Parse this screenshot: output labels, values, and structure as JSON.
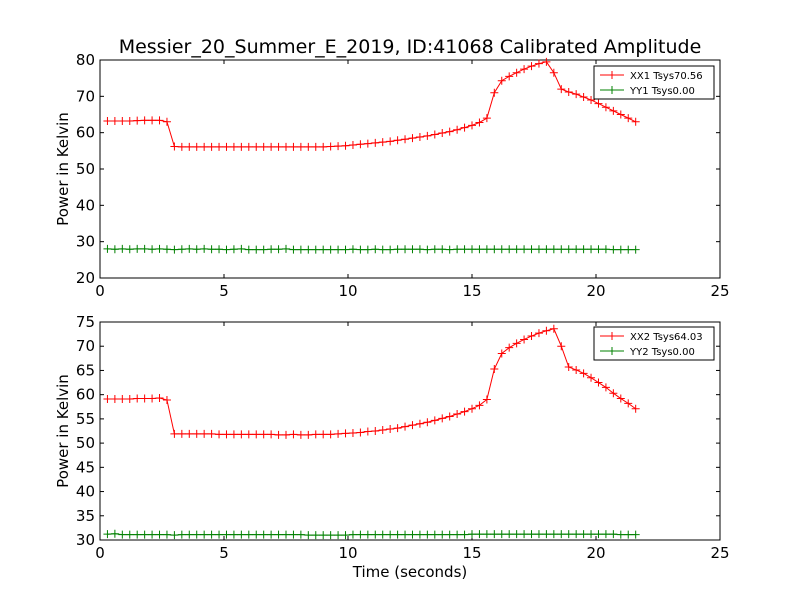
{
  "figure": {
    "title": "Messier_20_Summer_E_2019, ID:41068 Calibrated Amplitude",
    "xlabel": "Time (seconds)"
  },
  "chart_data": [
    {
      "type": "line",
      "ylabel": "Power in Kelvin",
      "xlim": [
        0,
        25
      ],
      "ylim": [
        20,
        80
      ],
      "xticks": [
        0,
        5,
        10,
        15,
        20,
        25
      ],
      "yticks": [
        20,
        30,
        40,
        50,
        60,
        70,
        80
      ],
      "legend_position": "top-right",
      "grid": false,
      "series": [
        {
          "name": "XX1 Tsys70.56",
          "color": "#ff0000",
          "marker": "+",
          "x": [
            0.3,
            0.6,
            0.9,
            1.2,
            1.5,
            1.8,
            2.1,
            2.4,
            2.7,
            3.0,
            3.3,
            3.6,
            3.9,
            4.2,
            4.5,
            4.8,
            5.1,
            5.4,
            5.7,
            6.0,
            6.3,
            6.6,
            6.9,
            7.2,
            7.5,
            7.8,
            8.1,
            8.4,
            8.7,
            9.0,
            9.3,
            9.6,
            9.9,
            10.2,
            10.5,
            10.8,
            11.1,
            11.4,
            11.7,
            12.0,
            12.3,
            12.6,
            12.9,
            13.2,
            13.5,
            13.8,
            14.1,
            14.4,
            14.7,
            15.0,
            15.3,
            15.6,
            15.9,
            16.2,
            16.5,
            16.8,
            17.1,
            17.4,
            17.7,
            18.0,
            18.3,
            18.6,
            18.9,
            19.2,
            19.5,
            19.8,
            20.1,
            20.4,
            20.7,
            21.0,
            21.3,
            21.6
          ],
          "y": [
            63.2,
            63.2,
            63.2,
            63.2,
            63.3,
            63.4,
            63.4,
            63.4,
            63.0,
            56.2,
            56.1,
            56.1,
            56.1,
            56.1,
            56.1,
            56.1,
            56.1,
            56.1,
            56.1,
            56.1,
            56.1,
            56.1,
            56.1,
            56.1,
            56.1,
            56.1,
            56.1,
            56.1,
            56.1,
            56.1,
            56.2,
            56.3,
            56.4,
            56.6,
            56.8,
            57.0,
            57.2,
            57.4,
            57.6,
            57.9,
            58.2,
            58.5,
            58.8,
            59.1,
            59.5,
            59.9,
            60.3,
            60.8,
            61.4,
            62.0,
            62.8,
            64.0,
            71.0,
            74.3,
            75.5,
            76.5,
            77.5,
            78.3,
            79.0,
            79.5,
            76.5,
            72.0,
            71.2,
            70.6,
            69.8,
            69.0,
            68.0,
            67.0,
            66.0,
            65.0,
            64.0,
            63.0
          ]
        },
        {
          "name": "YY1 Tsys0.00",
          "color": "#008000",
          "marker": "+",
          "x": [
            0.3,
            0.6,
            0.9,
            1.2,
            1.5,
            1.8,
            2.1,
            2.4,
            2.7,
            3.0,
            3.3,
            3.6,
            3.9,
            4.2,
            4.5,
            4.8,
            5.1,
            5.4,
            5.7,
            6.0,
            6.3,
            6.6,
            6.9,
            7.2,
            7.5,
            7.8,
            8.1,
            8.4,
            8.7,
            9.0,
            9.3,
            9.6,
            9.9,
            10.2,
            10.5,
            10.8,
            11.1,
            11.4,
            11.7,
            12.0,
            12.3,
            12.6,
            12.9,
            13.2,
            13.5,
            13.8,
            14.1,
            14.4,
            14.7,
            15.0,
            15.3,
            15.6,
            15.9,
            16.2,
            16.5,
            16.8,
            17.1,
            17.4,
            17.7,
            18.0,
            18.3,
            18.6,
            18.9,
            19.2,
            19.5,
            19.8,
            20.1,
            20.4,
            20.7,
            21.0,
            21.3,
            21.6
          ],
          "y": [
            28.0,
            27.9,
            28.0,
            27.9,
            28.0,
            28.0,
            27.9,
            28.0,
            27.9,
            27.8,
            27.9,
            28.0,
            27.9,
            28.0,
            27.9,
            27.9,
            27.8,
            27.9,
            28.0,
            27.8,
            27.8,
            27.8,
            27.9,
            27.9,
            28.0,
            27.8,
            27.8,
            27.8,
            27.8,
            27.8,
            27.8,
            27.8,
            27.8,
            27.9,
            27.8,
            27.8,
            27.9,
            27.8,
            27.8,
            27.9,
            27.9,
            27.9,
            27.9,
            27.8,
            27.9,
            27.9,
            27.8,
            27.9,
            27.9,
            27.9,
            27.9,
            27.9,
            27.9,
            27.9,
            27.9,
            27.9,
            27.9,
            27.9,
            27.9,
            27.9,
            27.9,
            27.9,
            27.9,
            27.9,
            27.9,
            27.9,
            27.9,
            27.9,
            27.8,
            27.8,
            27.8,
            27.8
          ]
        }
      ]
    },
    {
      "type": "line",
      "ylabel": "Power in Kelvin",
      "xlim": [
        0,
        25
      ],
      "ylim": [
        30,
        75
      ],
      "xticks": [
        0,
        5,
        10,
        15,
        20,
        25
      ],
      "yticks": [
        30,
        35,
        40,
        45,
        50,
        55,
        60,
        65,
        70,
        75
      ],
      "legend_position": "top-right",
      "grid": false,
      "series": [
        {
          "name": "XX2 Tsys64.03",
          "color": "#ff0000",
          "marker": "+",
          "x": [
            0.3,
            0.6,
            0.9,
            1.2,
            1.5,
            1.8,
            2.1,
            2.4,
            2.7,
            3.0,
            3.3,
            3.6,
            3.9,
            4.2,
            4.5,
            4.8,
            5.1,
            5.4,
            5.7,
            6.0,
            6.3,
            6.6,
            6.9,
            7.2,
            7.5,
            7.8,
            8.1,
            8.4,
            8.7,
            9.0,
            9.3,
            9.6,
            9.9,
            10.2,
            10.5,
            10.8,
            11.1,
            11.4,
            11.7,
            12.0,
            12.3,
            12.6,
            12.9,
            13.2,
            13.5,
            13.8,
            14.1,
            14.4,
            14.7,
            15.0,
            15.3,
            15.6,
            15.9,
            16.2,
            16.5,
            16.8,
            17.1,
            17.4,
            17.7,
            18.0,
            18.3,
            18.6,
            18.9,
            19.2,
            19.5,
            19.8,
            20.1,
            20.4,
            20.7,
            21.0,
            21.3,
            21.6
          ],
          "y": [
            59.1,
            59.1,
            59.1,
            59.1,
            59.2,
            59.2,
            59.2,
            59.3,
            58.9,
            51.9,
            51.9,
            51.9,
            51.9,
            51.9,
            51.9,
            51.8,
            51.8,
            51.8,
            51.8,
            51.8,
            51.8,
            51.8,
            51.8,
            51.7,
            51.7,
            51.8,
            51.7,
            51.7,
            51.8,
            51.8,
            51.8,
            51.9,
            52.0,
            52.1,
            52.2,
            52.4,
            52.5,
            52.7,
            52.9,
            53.1,
            53.4,
            53.7,
            54.0,
            54.3,
            54.7,
            55.1,
            55.5,
            56.0,
            56.5,
            57.1,
            57.8,
            59.0,
            65.3,
            68.5,
            69.7,
            70.6,
            71.4,
            72.1,
            72.7,
            73.2,
            73.6,
            70.0,
            65.7,
            65.1,
            64.4,
            63.5,
            62.5,
            61.5,
            60.3,
            59.2,
            58.2,
            57.1
          ]
        },
        {
          "name": "YY2 Tsys0.00",
          "color": "#008000",
          "marker": "+",
          "x": [
            0.3,
            0.6,
            0.9,
            1.2,
            1.5,
            1.8,
            2.1,
            2.4,
            2.7,
            3.0,
            3.3,
            3.6,
            3.9,
            4.2,
            4.5,
            4.8,
            5.1,
            5.4,
            5.7,
            6.0,
            6.3,
            6.6,
            6.9,
            7.2,
            7.5,
            7.8,
            8.1,
            8.4,
            8.7,
            9.0,
            9.3,
            9.6,
            9.9,
            10.2,
            10.5,
            10.8,
            11.1,
            11.4,
            11.7,
            12.0,
            12.3,
            12.6,
            12.9,
            13.2,
            13.5,
            13.8,
            14.1,
            14.4,
            14.7,
            15.0,
            15.3,
            15.6,
            15.9,
            16.2,
            16.5,
            16.8,
            17.1,
            17.4,
            17.7,
            18.0,
            18.3,
            18.6,
            18.9,
            19.2,
            19.5,
            19.8,
            20.1,
            20.4,
            20.7,
            21.0,
            21.3,
            21.6
          ],
          "y": [
            31.2,
            31.3,
            31.1,
            31.1,
            31.1,
            31.1,
            31.1,
            31.1,
            31.1,
            31.0,
            31.1,
            31.1,
            31.1,
            31.1,
            31.1,
            31.1,
            31.1,
            31.1,
            31.1,
            31.1,
            31.1,
            31.1,
            31.1,
            31.1,
            31.1,
            31.1,
            31.1,
            31.0,
            31.0,
            31.0,
            31.0,
            31.0,
            31.0,
            31.1,
            31.1,
            31.1,
            31.1,
            31.1,
            31.1,
            31.1,
            31.1,
            31.1,
            31.1,
            31.1,
            31.1,
            31.1,
            31.1,
            31.1,
            31.1,
            31.2,
            31.2,
            31.2,
            31.2,
            31.2,
            31.2,
            31.2,
            31.2,
            31.2,
            31.2,
            31.2,
            31.2,
            31.2,
            31.2,
            31.2,
            31.2,
            31.2,
            31.2,
            31.2,
            31.2,
            31.1,
            31.1,
            31.1
          ]
        }
      ]
    }
  ]
}
